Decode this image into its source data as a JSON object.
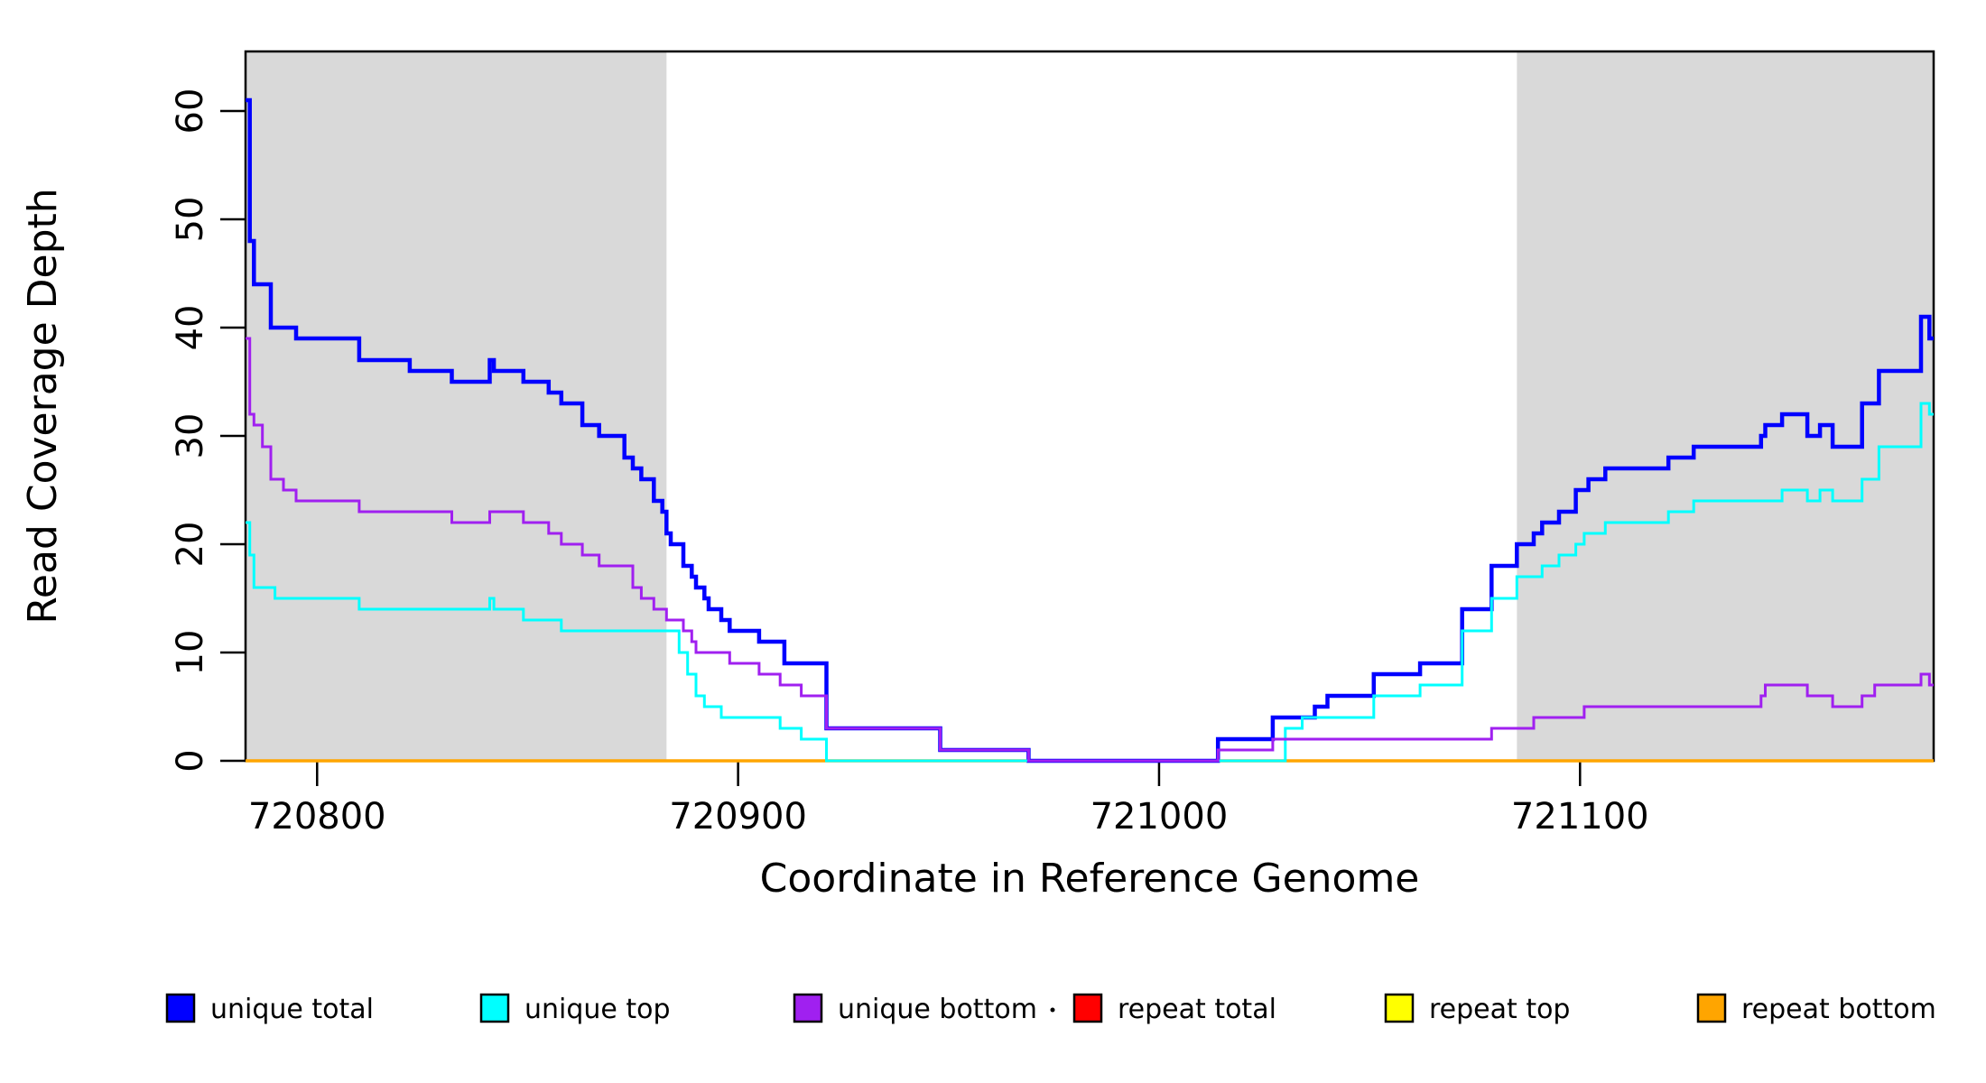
{
  "chart_data": {
    "type": "line",
    "line_style": "step-after",
    "title": "",
    "xlabel": "Coordinate in Reference Genome",
    "ylabel": "Read Coverage Depth",
    "xlim": [
      720783,
      721184
    ],
    "ylim": [
      0,
      65.5
    ],
    "x_ticks": [
      720800,
      720900,
      721000,
      721100
    ],
    "x_tick_labels": [
      "720800",
      "720900",
      "721000",
      "721100"
    ],
    "y_ticks": [
      0,
      10,
      20,
      30,
      40,
      50,
      60
    ],
    "y_tick_labels": [
      "0",
      "10",
      "20",
      "30",
      "40",
      "50",
      "60"
    ],
    "grid": false,
    "plot_background": "#ffffff",
    "shade_color": "#d9d9d9",
    "shaded_regions": [
      {
        "from": 720783,
        "to": 720883
      },
      {
        "from": 721085,
        "to": 721184
      }
    ],
    "axis_color": "#000000",
    "draw_order": [
      "repeat top",
      "repeat total",
      "repeat bottom",
      "unique total",
      "unique top",
      "unique bottom"
    ],
    "series": [
      {
        "name": "unique total",
        "color": "#0000ff",
        "width": 4.5,
        "points": [
          [
            720783,
            61
          ],
          [
            720784,
            48
          ],
          [
            720785,
            44
          ],
          [
            720789,
            40
          ],
          [
            720795,
            39
          ],
          [
            720810,
            37
          ],
          [
            720822,
            36
          ],
          [
            720832,
            35
          ],
          [
            720841,
            37
          ],
          [
            720842,
            36
          ],
          [
            720849,
            35
          ],
          [
            720855,
            34
          ],
          [
            720858,
            33
          ],
          [
            720863,
            31
          ],
          [
            720867,
            30
          ],
          [
            720873,
            28
          ],
          [
            720875,
            27
          ],
          [
            720877,
            26
          ],
          [
            720880,
            24
          ],
          [
            720882,
            23
          ],
          [
            720883,
            21
          ],
          [
            720884,
            20
          ],
          [
            720887,
            18
          ],
          [
            720889,
            17
          ],
          [
            720890,
            16
          ],
          [
            720892,
            15
          ],
          [
            720893,
            14
          ],
          [
            720896,
            13
          ],
          [
            720898,
            12
          ],
          [
            720905,
            11
          ],
          [
            720911,
            9
          ],
          [
            720921,
            3
          ],
          [
            720948,
            1
          ],
          [
            720969,
            0
          ],
          [
            721014,
            2
          ],
          [
            721027,
            4
          ],
          [
            721037,
            5
          ],
          [
            721040,
            6
          ],
          [
            721051,
            8
          ],
          [
            721062,
            9
          ],
          [
            721072,
            14
          ],
          [
            721079,
            18
          ],
          [
            721085,
            20
          ],
          [
            721089,
            21
          ],
          [
            721091,
            22
          ],
          [
            721095,
            23
          ],
          [
            721099,
            25
          ],
          [
            721102,
            26
          ],
          [
            721106,
            27
          ],
          [
            721121,
            28
          ],
          [
            721127,
            29
          ],
          [
            721143,
            30
          ],
          [
            721144,
            31
          ],
          [
            721148,
            32
          ],
          [
            721154,
            30
          ],
          [
            721157,
            31
          ],
          [
            721160,
            29
          ],
          [
            721167,
            33
          ],
          [
            721171,
            36
          ],
          [
            721181,
            41
          ],
          [
            721183,
            39
          ],
          [
            721184,
            39
          ]
        ]
      },
      {
        "name": "unique top",
        "color": "#00ffff",
        "width": 3,
        "points": [
          [
            720783,
            22
          ],
          [
            720784,
            19
          ],
          [
            720785,
            16
          ],
          [
            720790,
            15
          ],
          [
            720810,
            14
          ],
          [
            720841,
            15
          ],
          [
            720842,
            14
          ],
          [
            720849,
            13
          ],
          [
            720858,
            12
          ],
          [
            720886,
            10
          ],
          [
            720888,
            8
          ],
          [
            720890,
            6
          ],
          [
            720892,
            5
          ],
          [
            720896,
            4
          ],
          [
            720910,
            3
          ],
          [
            720915,
            2
          ],
          [
            720921,
            0
          ],
          [
            721030,
            3
          ],
          [
            721034,
            4
          ],
          [
            721051,
            6
          ],
          [
            721062,
            7
          ],
          [
            721072,
            12
          ],
          [
            721079,
            15
          ],
          [
            721085,
            17
          ],
          [
            721091,
            18
          ],
          [
            721095,
            19
          ],
          [
            721099,
            20
          ],
          [
            721101,
            21
          ],
          [
            721106,
            22
          ],
          [
            721121,
            23
          ],
          [
            721127,
            24
          ],
          [
            721148,
            25
          ],
          [
            721154,
            24
          ],
          [
            721157,
            25
          ],
          [
            721160,
            24
          ],
          [
            721167,
            26
          ],
          [
            721171,
            29
          ],
          [
            721181,
            33
          ],
          [
            721183,
            32
          ],
          [
            721184,
            32
          ]
        ]
      },
      {
        "name": "unique bottom",
        "color": "#a020f0",
        "width": 3,
        "points": [
          [
            720783,
            39
          ],
          [
            720784,
            32
          ],
          [
            720785,
            31
          ],
          [
            720787,
            29
          ],
          [
            720789,
            26
          ],
          [
            720792,
            25
          ],
          [
            720795,
            24
          ],
          [
            720810,
            23
          ],
          [
            720832,
            22
          ],
          [
            720841,
            23
          ],
          [
            720849,
            22
          ],
          [
            720855,
            21
          ],
          [
            720858,
            20
          ],
          [
            720863,
            19
          ],
          [
            720867,
            18
          ],
          [
            720875,
            16
          ],
          [
            720877,
            15
          ],
          [
            720880,
            14
          ],
          [
            720883,
            13
          ],
          [
            720887,
            12
          ],
          [
            720889,
            11
          ],
          [
            720890,
            10
          ],
          [
            720898,
            9
          ],
          [
            720905,
            8
          ],
          [
            720910,
            7
          ],
          [
            720915,
            6
          ],
          [
            720921,
            3
          ],
          [
            720948,
            1
          ],
          [
            720969,
            0
          ],
          [
            721014,
            1
          ],
          [
            721027,
            2
          ],
          [
            721079,
            3
          ],
          [
            721089,
            4
          ],
          [
            721101,
            5
          ],
          [
            721143,
            6
          ],
          [
            721144,
            7
          ],
          [
            721154,
            6
          ],
          [
            721160,
            5
          ],
          [
            721167,
            6
          ],
          [
            721170,
            7
          ],
          [
            721181,
            8
          ],
          [
            721183,
            7
          ],
          [
            721184,
            7
          ]
        ]
      },
      {
        "name": "repeat total",
        "color": "#ff0000",
        "width": 3,
        "points": [
          [
            720783,
            0
          ],
          [
            721184,
            0
          ]
        ]
      },
      {
        "name": "repeat top",
        "color": "#ffff00",
        "width": 3,
        "points": [
          [
            720783,
            0
          ],
          [
            721184,
            0
          ]
        ]
      },
      {
        "name": "repeat bottom",
        "color": "#ffa500",
        "width": 3.5,
        "points": [
          [
            720783,
            0
          ],
          [
            721184,
            0
          ]
        ]
      }
    ],
    "legend": {
      "position": "bottom",
      "items": [
        {
          "label": "unique total",
          "color": "#0000ff"
        },
        {
          "label": "unique top",
          "color": "#00ffff"
        },
        {
          "label": "unique bottom",
          "color": "#a020f0"
        },
        {
          "label": "repeat total",
          "color": "#ff0000"
        },
        {
          "label": "repeat top",
          "color": "#ffff00"
        },
        {
          "label": "repeat bottom",
          "color": "#ffa500"
        }
      ]
    }
  }
}
